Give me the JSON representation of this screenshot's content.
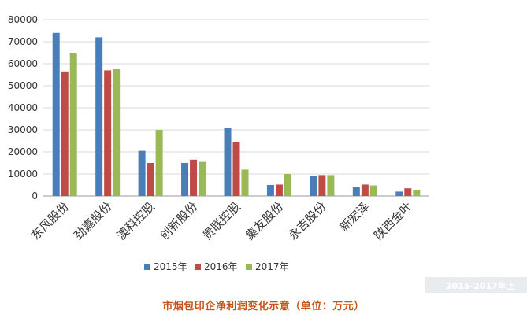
{
  "chart_data": {
    "type": "bar",
    "categories": [
      "东风股份",
      "劲嘉股份",
      "澳科控股",
      "创新股份",
      "贵联控股",
      "集友股份",
      "永吉股份",
      "新宏泽",
      "陕西金叶"
    ],
    "series": [
      {
        "name": "2015年",
        "color": "#4a7ebb",
        "values": [
          74000,
          72000,
          20500,
          15000,
          31000,
          5000,
          9200,
          4000,
          2000
        ]
      },
      {
        "name": "2016年",
        "color": "#be4b48",
        "values": [
          56500,
          57000,
          15000,
          16500,
          24500,
          5200,
          9500,
          5200,
          3500
        ]
      },
      {
        "name": "2017年",
        "color": "#98b954",
        "values": [
          65000,
          57500,
          30000,
          15500,
          12000,
          10000,
          9500,
          4800,
          2800
        ]
      }
    ],
    "ylim": [
      0,
      80000
    ],
    "yticks": [
      0,
      10000,
      20000,
      30000,
      40000,
      50000,
      60000,
      70000,
      80000
    ],
    "grid": true,
    "legend_position": "bottom"
  },
  "watermark_text": "2015-2017年上",
  "caption": "市烟包印企净利润变化示意（单位：万元）"
}
